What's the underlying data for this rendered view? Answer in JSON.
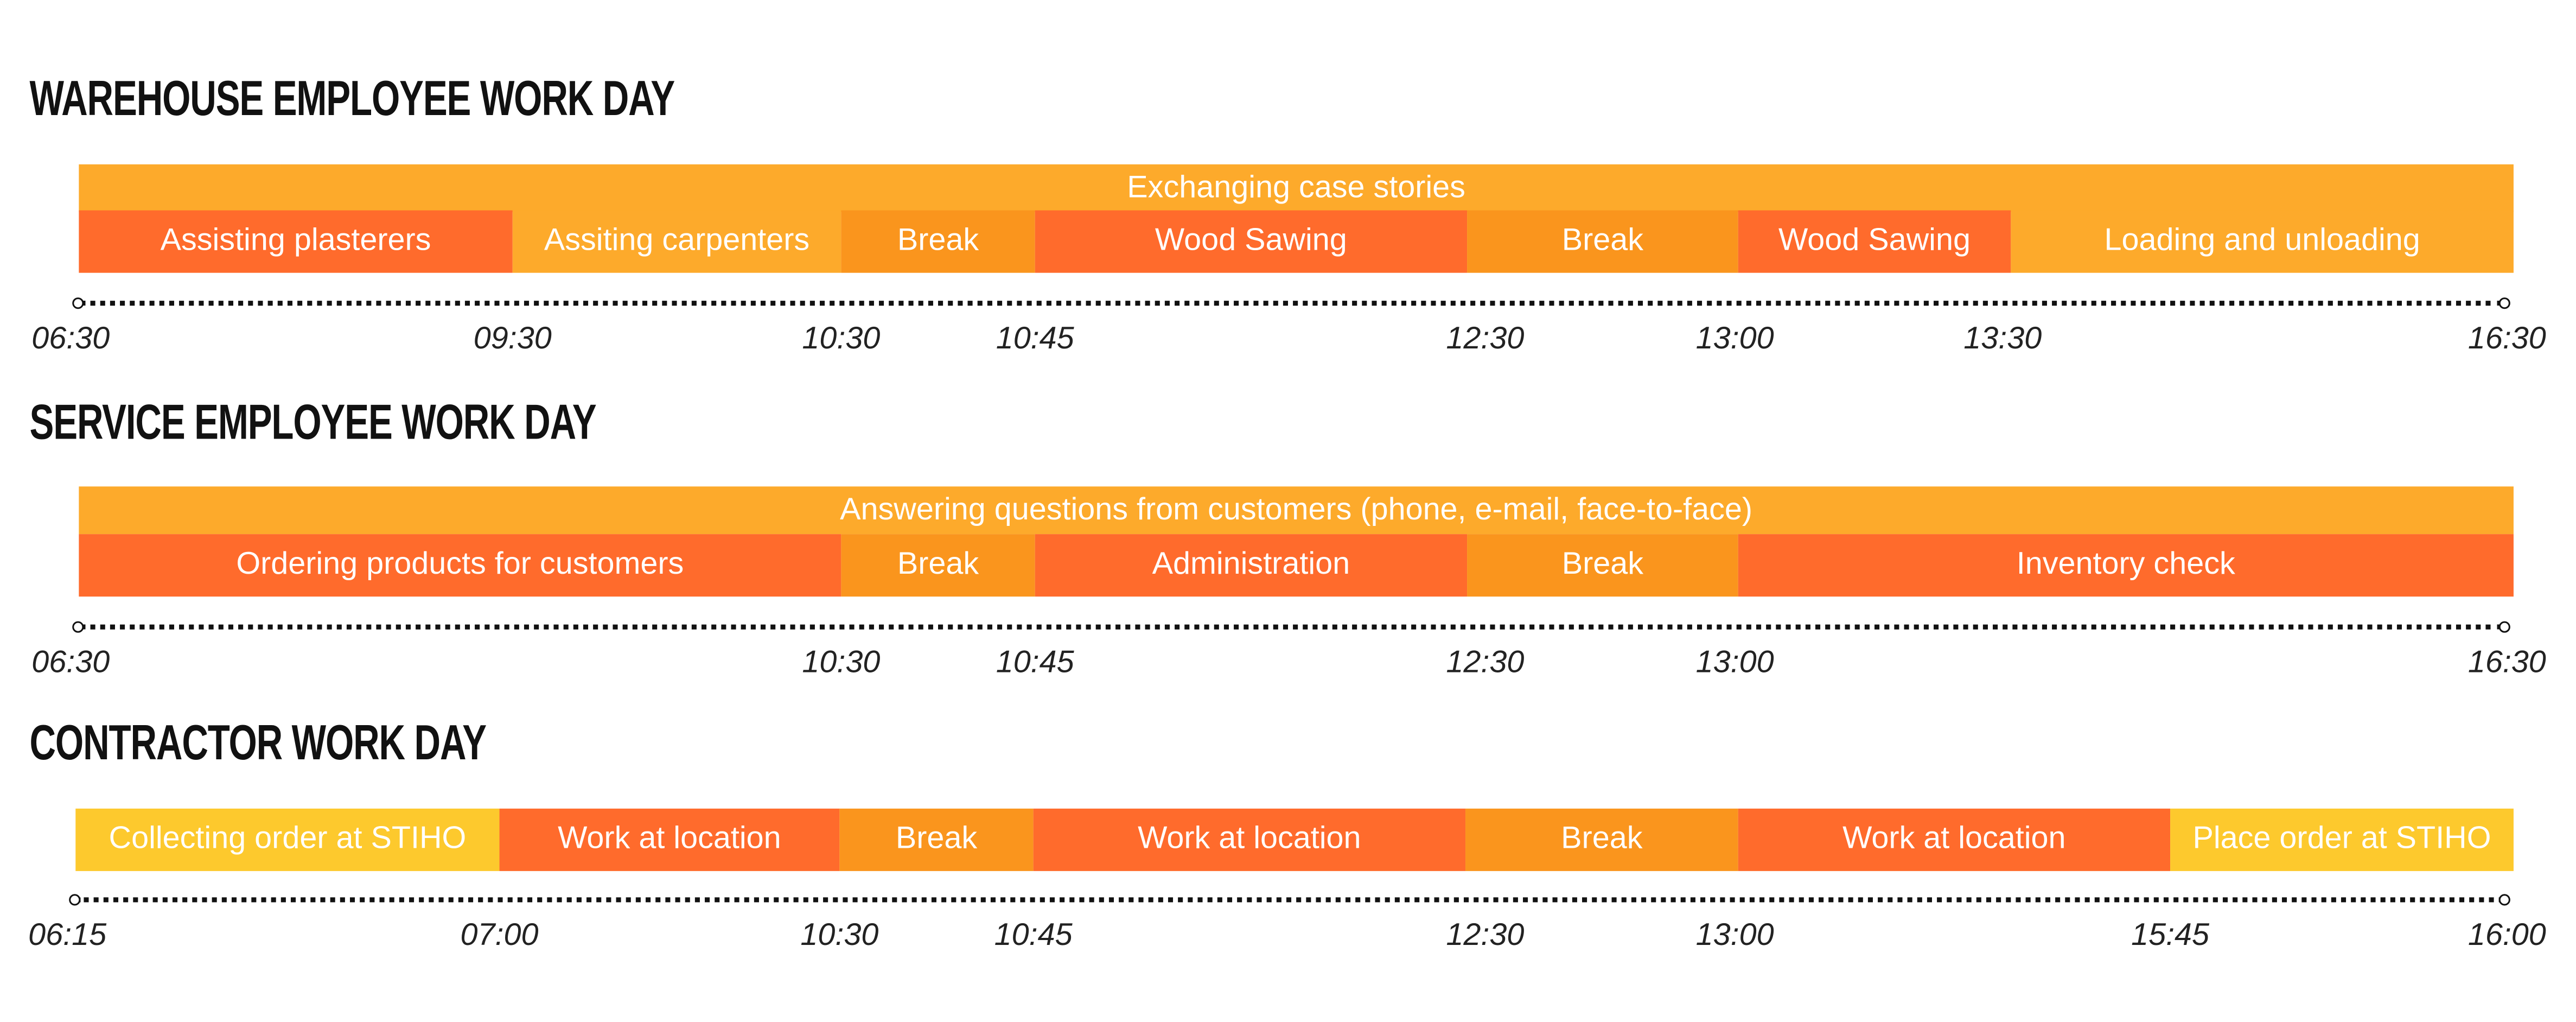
{
  "colors": {
    "light_orange": "#fdaa2b",
    "dark_orange": "#ff6b2c",
    "mid_orange": "#fa951d",
    "yellow": "#fdc92d"
  },
  "sections": [
    {
      "title": "WAREHOUSE EMPLOYEE WORK DAY",
      "banner": "Exchanging case stories",
      "segments": [
        {
          "label": "Assisting plasterers",
          "start": "06:30",
          "end": "09:30"
        },
        {
          "label": "Assiting carpenters",
          "start": "09:30",
          "end": "10:30"
        },
        {
          "label": "Break",
          "start": "10:30",
          "end": "10:45"
        },
        {
          "label": "Wood Sawing",
          "start": "10:45",
          "end": "12:30"
        },
        {
          "label": "Break",
          "start": "12:30",
          "end": "13:00"
        },
        {
          "label": "Wood Sawing",
          "start": "13:00",
          "end": "13:30"
        },
        {
          "label": "Loading and unloading",
          "start": "13:30",
          "end": "16:30"
        }
      ],
      "ticks": [
        "06:30",
        "09:30",
        "10:30",
        "10:45",
        "12:30",
        "13:00",
        "13:30",
        "16:30"
      ]
    },
    {
      "title": "SERVICE EMPLOYEE WORK DAY",
      "banner": "Answering questions from customers (phone, e-mail, face-to-face)",
      "segments": [
        {
          "label": "Ordering products for customers",
          "start": "06:30",
          "end": "10:30"
        },
        {
          "label": "Break",
          "start": "10:30",
          "end": "10:45"
        },
        {
          "label": "Administration",
          "start": "10:45",
          "end": "12:30"
        },
        {
          "label": "Break",
          "start": "12:30",
          "end": "13:00"
        },
        {
          "label": "Inventory check",
          "start": "13:00",
          "end": "16:30"
        }
      ],
      "ticks": [
        "06:30",
        "10:30",
        "10:45",
        "12:30",
        "13:00",
        "16:30"
      ]
    },
    {
      "title": "CONTRACTOR WORK DAY",
      "segments": [
        {
          "label": "Collecting order at STIHO",
          "start": "06:15",
          "end": "07:00"
        },
        {
          "label": "Work at location",
          "start": "07:00",
          "end": "10:30"
        },
        {
          "label": "Break",
          "start": "10:30",
          "end": "10:45"
        },
        {
          "label": "Work at location",
          "start": "10:45",
          "end": "12:30"
        },
        {
          "label": "Break",
          "start": "12:30",
          "end": "13:00"
        },
        {
          "label": "Work at location",
          "start": "13:00",
          "end": "15:45"
        },
        {
          "label": "Place order at STIHO",
          "start": "15:45",
          "end": "16:00"
        }
      ],
      "ticks": [
        "06:15",
        "07:00",
        "10:30",
        "10:45",
        "12:30",
        "13:00",
        "15:45",
        "16:00"
      ]
    }
  ]
}
